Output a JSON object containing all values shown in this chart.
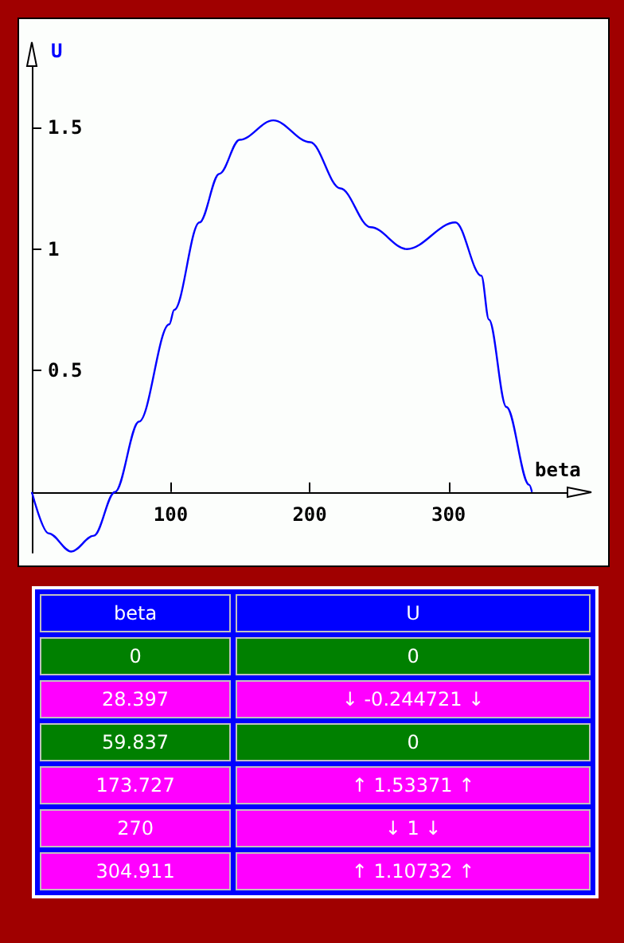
{
  "chart_data": [
    {
      "type": "line",
      "xlabel": "beta",
      "ylabel": "U",
      "x": [
        0,
        12,
        28.397,
        44.6,
        59.837,
        77.2,
        98.9,
        102.5,
        120.7,
        135,
        149.6,
        173.727,
        200.3,
        222,
        243.8,
        270,
        304.911,
        323.6,
        329,
        341.6,
        358,
        360
      ],
      "series": [
        {
          "color": "#0000ff",
          "values": [
            0,
            -0.17,
            -0.245,
            -0.18,
            0,
            0.29,
            0.69,
            0.75,
            1.11,
            1.31,
            1.45,
            1.53,
            1.44,
            1.25,
            1.09,
            1,
            1.11,
            0.89,
            0.71,
            0.35,
            0.03,
            0
          ]
        }
      ],
      "xlim": [
        0,
        385
      ],
      "ylim": [
        -0.25,
        1.75
      ],
      "xticks": [
        100,
        200,
        300
      ],
      "yticks": [
        0.5,
        1,
        1.5
      ],
      "grid": false,
      "marker": "none",
      "line_style": "solid"
    },
    {
      "type": "other",
      "categories": [
        "beta",
        "U"
      ],
      "colors": [
        "#0000ff",
        "#0000ff",
        "#008000",
        "#008000",
        "#ff00ff",
        "#ff00ff",
        "#008000",
        "#008000",
        "#ff00ff",
        "#ff00ff",
        "#ff00ff",
        "#ff00ff",
        "#ff00ff",
        "#ff00ff"
      ],
      "cell_labels": [
        [
          "0",
          "0"
        ],
        [
          "28.397",
          "↓ -0.244721 ↓"
        ],
        [
          "59.837",
          "0"
        ],
        [
          "173.727",
          "↑ 1.53371 ↑"
        ],
        [
          "270",
          "↓ 1 ↓"
        ],
        [
          "304.911",
          "↑ 1.10732 ↑"
        ]
      ]
    }
  ]
}
